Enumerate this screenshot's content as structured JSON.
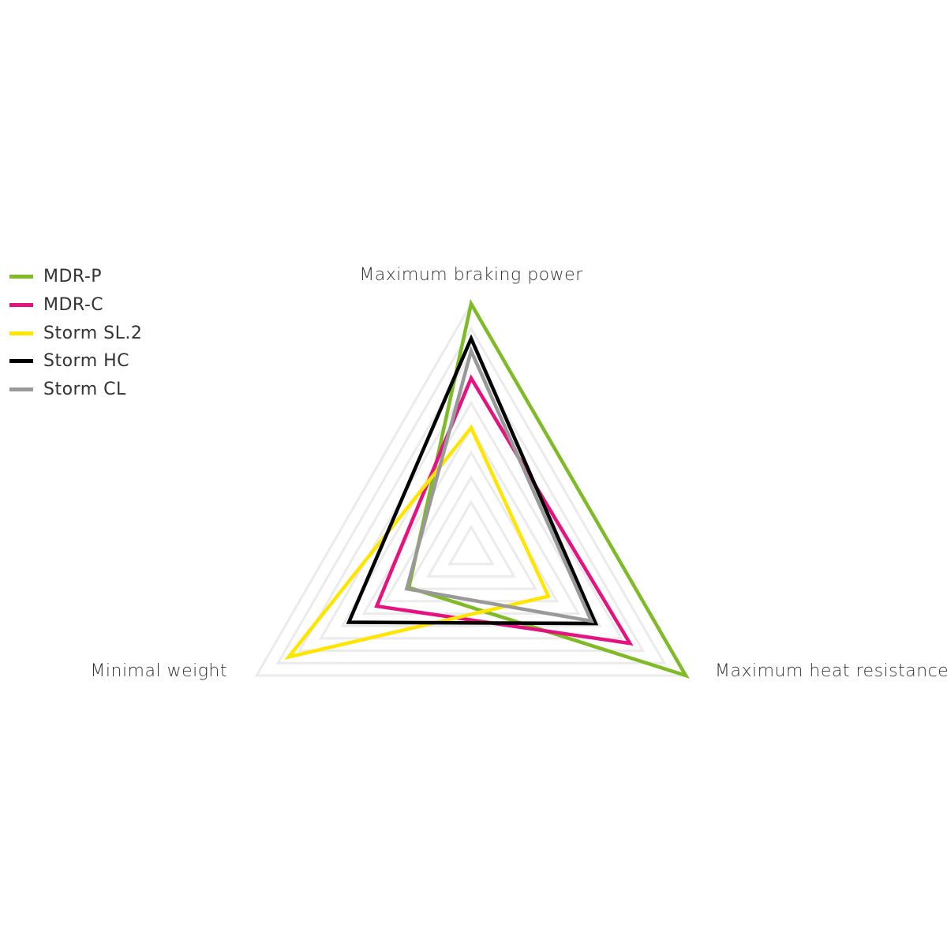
{
  "chart_data": {
    "type": "radar",
    "axes": [
      "Maximum braking power",
      "Maximum heat resistance",
      "Minimal weight"
    ],
    "rlim": [
      0,
      10
    ],
    "grid_levels": 10,
    "grid": true,
    "grid_color": "#ebebeb",
    "legend_placement": "left",
    "series": [
      {
        "name": "MDR-P",
        "color": "#7fba27",
        "values": [
          10,
          10,
          2.9
        ]
      },
      {
        "name": "MDR-C",
        "color": "#e5137f",
        "values": [
          7,
          7.4,
          4.4
        ]
      },
      {
        "name": "Storm SL.2",
        "color": "#ffe500",
        "values": [
          5,
          3.6,
          8.5
        ]
      },
      {
        "name": "Storm HC",
        "color": "#000000",
        "values": [
          8.6,
          5.8,
          5.7
        ]
      },
      {
        "name": "Storm CL",
        "color": "#999999",
        "values": [
          8.1,
          5.6,
          3.0
        ]
      }
    ]
  }
}
